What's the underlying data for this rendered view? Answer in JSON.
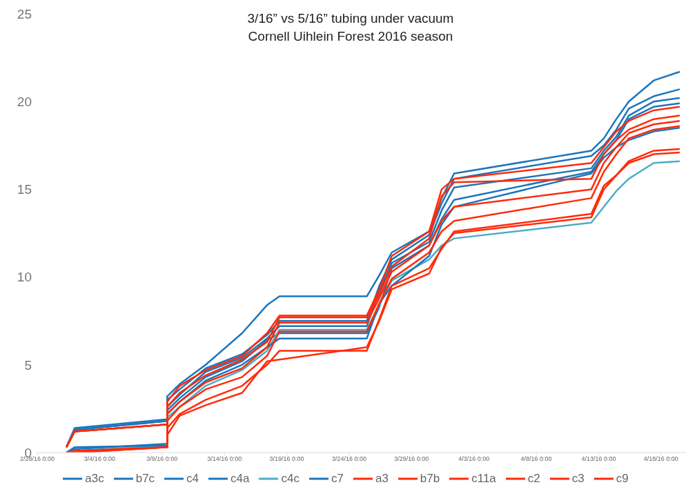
{
  "chart_data": {
    "type": "line",
    "title": "3/16” vs 5/16” tubing under vacuum",
    "subtitle": "Cornell Uihlein Forest 2016 season",
    "x": [
      "2016-03-01T08:00",
      "2016-03-02T00:00",
      "2016-03-09T10:00",
      "2016-03-09T10:00",
      "2016-03-10T10:00",
      "2016-03-12T12:00",
      "2016-03-15T10:00",
      "2016-03-17T10:00",
      "2016-03-18T10:00",
      "2016-03-25T10:00",
      "2016-03-26T10:00",
      "2016-03-27T10:00",
      "2016-03-30T10:00",
      "2016-03-31T10:00",
      "2016-04-01T10:00",
      "2016-04-12T10:00",
      "2016-04-13T10:00",
      "2016-04-14T10:00",
      "2016-04-15T10:00",
      "2016-04-17T10:00",
      "2016-04-19T12:00"
    ],
    "series": [
      {
        "name": "a3c",
        "color": "#1b75bc",
        "values": [
          0.3,
          1.4,
          1.9,
          3.2,
          3.9,
          5.0,
          6.8,
          8.4,
          8.9,
          8.9,
          10.1,
          11.4,
          12.6,
          14.5,
          15.9,
          17.2,
          17.9,
          19.0,
          20.0,
          21.2,
          21.7
        ]
      },
      {
        "name": "b7c",
        "color": "#1b75bc",
        "values": [
          0.3,
          1.3,
          1.8,
          3.0,
          3.6,
          4.8,
          5.6,
          6.7,
          7.5,
          7.5,
          9.5,
          11.0,
          12.4,
          14.2,
          15.6,
          16.9,
          17.5,
          18.4,
          19.6,
          20.3,
          20.7
        ]
      },
      {
        "name": "c4",
        "color": "#1b75bc",
        "values": [
          0.3,
          1.3,
          1.8,
          2.6,
          3.3,
          4.6,
          5.4,
          6.5,
          7.2,
          7.2,
          9.2,
          10.8,
          12.0,
          13.8,
          15.1,
          16.2,
          17.2,
          18.0,
          19.2,
          20.0,
          20.2
        ]
      },
      {
        "name": "c4a",
        "color": "#1b75bc",
        "values": [
          0,
          0.2,
          0.5,
          2.4,
          3.1,
          4.3,
          5.2,
          6.4,
          6.8,
          6.8,
          8.3,
          10.5,
          11.8,
          13.3,
          14.4,
          16.0,
          17.0,
          17.8,
          19.0,
          19.7,
          19.9
        ]
      },
      {
        "name": "c4c",
        "color": "#4bacc6",
        "values": [
          0,
          0.1,
          0.4,
          2.0,
          2.6,
          3.8,
          4.7,
          5.8,
          7.0,
          7.0,
          8.4,
          9.8,
          11.0,
          11.8,
          12.2,
          13.1,
          14.0,
          14.9,
          15.6,
          16.5,
          16.6
        ]
      },
      {
        "name": "c7",
        "color": "#1b75bc",
        "values": [
          0,
          0.3,
          0.4,
          2.2,
          2.9,
          4.1,
          5.0,
          6.0,
          6.5,
          6.5,
          8.5,
          9.5,
          11.2,
          13.0,
          14.0,
          15.9,
          16.8,
          17.4,
          17.8,
          18.3,
          18.5
        ]
      },
      {
        "name": "a3",
        "color": "#ff2a0a",
        "values": [
          0.3,
          1.2,
          1.6,
          2.9,
          3.8,
          4.7,
          5.5,
          6.8,
          7.8,
          7.8,
          9.3,
          11.2,
          12.6,
          15.0,
          15.6,
          16.5,
          17.4,
          18.3,
          18.9,
          19.5,
          19.7
        ]
      },
      {
        "name": "b7b",
        "color": "#ff2a0a",
        "values": [
          0.3,
          1.2,
          1.6,
          2.6,
          3.4,
          4.4,
          5.3,
          6.3,
          7.7,
          7.7,
          9.0,
          10.6,
          12.2,
          14.6,
          15.4,
          15.6,
          17.0,
          17.8,
          18.4,
          19.0,
          19.2
        ]
      },
      {
        "name": "c11a",
        "color": "#ff2a0a",
        "values": [
          0,
          0.1,
          0.3,
          2.2,
          2.9,
          4.0,
          4.8,
          6.0,
          7.4,
          7.4,
          8.8,
          10.3,
          11.8,
          13.2,
          14.0,
          15.0,
          16.5,
          17.4,
          18.2,
          18.7,
          18.9
        ]
      },
      {
        "name": "c2",
        "color": "#ff2a0a",
        "values": [
          0,
          0,
          0.3,
          1.8,
          2.6,
          3.6,
          4.3,
          5.5,
          6.9,
          6.9,
          8.5,
          9.9,
          11.4,
          12.6,
          13.2,
          14.5,
          16.0,
          17.0,
          17.9,
          18.4,
          18.6
        ]
      },
      {
        "name": "c3",
        "color": "#ff2a0a",
        "values": [
          0,
          0,
          0.3,
          1.4,
          2.2,
          3.0,
          3.8,
          5.0,
          5.8,
          5.8,
          7.6,
          9.5,
          10.5,
          11.6,
          12.6,
          13.6,
          15.2,
          15.8,
          16.6,
          17.2,
          17.3
        ]
      },
      {
        "name": "c9",
        "color": "#ff2a0a",
        "values": [
          0.3,
          1.2,
          1.6,
          1.0,
          2.1,
          2.7,
          3.4,
          5.2,
          5.3,
          6.0,
          7.5,
          9.3,
          10.2,
          11.7,
          12.5,
          13.4,
          15.0,
          15.8,
          16.5,
          17.0,
          17.1
        ]
      }
    ],
    "xlim": [
      "2016-02-28",
      "2016-04-20"
    ],
    "xticks": [
      {
        "value": "2016-02-28",
        "label": "2/28/16 0:00"
      },
      {
        "value": "2016-03-04",
        "label": "3/4/16 0:00"
      },
      {
        "value": "2016-03-09",
        "label": "3/9/16 0:00"
      },
      {
        "value": "2016-03-14",
        "label": "3/14/16 0:00"
      },
      {
        "value": "2016-03-19",
        "label": "3/19/16 0:00"
      },
      {
        "value": "2016-03-24",
        "label": "3/24/16 0:00"
      },
      {
        "value": "2016-03-29",
        "label": "3/29/16 0:00"
      },
      {
        "value": "2016-04-03",
        "label": "4/3/16 0:00"
      },
      {
        "value": "2016-04-08",
        "label": "4/8/16 0:00"
      },
      {
        "value": "2016-04-13",
        "label": "4/13/16 0:00"
      },
      {
        "value": "2016-04-18",
        "label": "4/18/16 0:00"
      }
    ],
    "ylim": [
      0,
      25
    ],
    "yticks": [
      0,
      5,
      10,
      15,
      20,
      25
    ],
    "grid": false,
    "legend": "bottom",
    "marker": "none",
    "line_style": "solid"
  }
}
